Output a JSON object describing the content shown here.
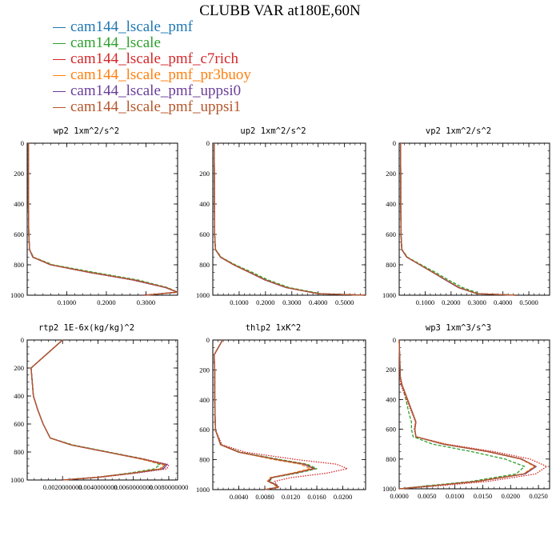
{
  "title": "CLUBB VAR at180E,60N",
  "legend": [
    {
      "name": "cam144_lscale_pmf",
      "color": "#1f77b4",
      "dash": "solid"
    },
    {
      "name": "cam144_lscale",
      "color": "#2ca02c",
      "dash": "dashed"
    },
    {
      "name": "cam144_lscale_pmf_c7rich",
      "color": "#d62728",
      "dash": "dotted"
    },
    {
      "name": "cam144_lscale_pmf_pr3buoy",
      "color": "#ff7f0e",
      "dash": "dashed"
    },
    {
      "name": "cam144_lscale_pmf_uppsi0",
      "color": "#6a3d9a",
      "dash": "solid"
    },
    {
      "name": "cam144_lscale_pmf_uppsi1",
      "color": "#b5562a",
      "dash": "solid"
    }
  ],
  "chart_data": [
    {
      "type": "line",
      "title": "wp2   1xm^2/s^2",
      "xlim": [
        0,
        0.38
      ],
      "ylim": [
        1000,
        0
      ],
      "xticks": [
        0.1,
        0.2,
        0.3
      ],
      "xtick_labels": [
        "0.1000",
        "0.2000",
        "0.3000"
      ],
      "yticks": [
        0,
        200,
        400,
        600,
        800,
        1000
      ],
      "ytick_labels": [
        "0",
        "200",
        "400",
        "600",
        "800",
        "1000"
      ],
      "y": [
        0,
        200,
        400,
        600,
        700,
        750,
        800,
        850,
        900,
        950,
        980,
        1000
      ],
      "series": [
        {
          "name": "cam144_lscale_pmf",
          "values": [
            0.003,
            0.003,
            0.003,
            0.004,
            0.006,
            0.015,
            0.06,
            0.16,
            0.27,
            0.35,
            0.38,
            0.3
          ]
        },
        {
          "name": "cam144_lscale",
          "values": [
            0.003,
            0.003,
            0.003,
            0.004,
            0.006,
            0.016,
            0.065,
            0.17,
            0.28,
            0.355,
            0.38,
            0.3
          ]
        },
        {
          "name": "cam144_lscale_pmf_c7rich",
          "values": [
            0.003,
            0.003,
            0.003,
            0.004,
            0.006,
            0.015,
            0.058,
            0.155,
            0.265,
            0.35,
            0.378,
            0.29
          ]
        },
        {
          "name": "cam144_lscale_pmf_pr3buoy",
          "values": [
            0.003,
            0.003,
            0.003,
            0.004,
            0.006,
            0.015,
            0.06,
            0.158,
            0.27,
            0.35,
            0.38,
            0.3
          ]
        },
        {
          "name": "cam144_lscale_pmf_uppsi0",
          "values": [
            0.003,
            0.003,
            0.003,
            0.004,
            0.006,
            0.014,
            0.059,
            0.157,
            0.268,
            0.35,
            0.379,
            0.3
          ]
        },
        {
          "name": "cam144_lscale_pmf_uppsi1",
          "values": [
            0.003,
            0.003,
            0.003,
            0.004,
            0.006,
            0.015,
            0.06,
            0.16,
            0.272,
            0.352,
            0.38,
            0.3
          ]
        }
      ]
    },
    {
      "type": "line",
      "title": "up2   1xm^2/s^2",
      "xlim": [
        0,
        0.58
      ],
      "ylim": [
        1000,
        0
      ],
      "xticks": [
        0.1,
        0.2,
        0.3,
        0.4,
        0.5
      ],
      "xtick_labels": [
        "0.1000",
        "0.2000",
        "0.3000",
        "0.4000",
        "0.5000"
      ],
      "yticks": [
        0,
        200,
        400,
        600,
        800,
        1000
      ],
      "ytick_labels": [
        "0",
        "200",
        "400",
        "600",
        "800",
        "1000"
      ],
      "y": [
        0,
        200,
        400,
        600,
        700,
        750,
        800,
        850,
        900,
        950,
        990,
        1000
      ],
      "series": [
        {
          "name": "cam144_lscale_pmf",
          "values": [
            0.005,
            0.006,
            0.006,
            0.007,
            0.01,
            0.03,
            0.08,
            0.14,
            0.2,
            0.28,
            0.4,
            0.58
          ]
        },
        {
          "name": "cam144_lscale",
          "values": [
            0.005,
            0.006,
            0.006,
            0.007,
            0.011,
            0.032,
            0.085,
            0.15,
            0.21,
            0.29,
            0.41,
            0.58
          ]
        },
        {
          "name": "cam144_lscale_pmf_c7rich",
          "values": [
            0.005,
            0.006,
            0.006,
            0.007,
            0.01,
            0.03,
            0.08,
            0.14,
            0.2,
            0.28,
            0.4,
            0.58
          ]
        },
        {
          "name": "cam144_lscale_pmf_pr3buoy",
          "values": [
            0.005,
            0.006,
            0.006,
            0.007,
            0.01,
            0.03,
            0.08,
            0.14,
            0.2,
            0.28,
            0.4,
            0.58
          ]
        },
        {
          "name": "cam144_lscale_pmf_uppsi0",
          "values": [
            0.005,
            0.006,
            0.006,
            0.007,
            0.01,
            0.029,
            0.079,
            0.139,
            0.198,
            0.278,
            0.4,
            0.58
          ]
        },
        {
          "name": "cam144_lscale_pmf_uppsi1",
          "values": [
            0.005,
            0.006,
            0.006,
            0.007,
            0.01,
            0.03,
            0.08,
            0.141,
            0.201,
            0.281,
            0.4,
            0.58
          ]
        }
      ]
    },
    {
      "type": "line",
      "title": "vp2   1xm^2/s^2",
      "xlim": [
        0,
        0.58
      ],
      "ylim": [
        1000,
        0
      ],
      "xticks": [
        0.1,
        0.2,
        0.3,
        0.4,
        0.5
      ],
      "xtick_labels": [
        "0.1000",
        "0.2000",
        "0.3000",
        "0.4000",
        "0.5000"
      ],
      "yticks": [
        0,
        200,
        400,
        600,
        800,
        1000
      ],
      "ytick_labels": [
        "0",
        "200",
        "400",
        "600",
        "800",
        "1000"
      ],
      "y": [
        0,
        200,
        400,
        600,
        700,
        750,
        800,
        850,
        900,
        950,
        990,
        1000
      ],
      "series": [
        {
          "name": "cam144_lscale_pmf",
          "values": [
            0.005,
            0.006,
            0.006,
            0.007,
            0.01,
            0.03,
            0.08,
            0.13,
            0.18,
            0.23,
            0.3,
            0.45
          ]
        },
        {
          "name": "cam144_lscale",
          "values": [
            0.005,
            0.006,
            0.006,
            0.007,
            0.011,
            0.032,
            0.085,
            0.14,
            0.19,
            0.245,
            0.31,
            0.45
          ]
        },
        {
          "name": "cam144_lscale_pmf_c7rich",
          "values": [
            0.005,
            0.006,
            0.006,
            0.007,
            0.01,
            0.03,
            0.08,
            0.13,
            0.18,
            0.23,
            0.3,
            0.45
          ]
        },
        {
          "name": "cam144_lscale_pmf_pr3buoy",
          "values": [
            0.005,
            0.006,
            0.006,
            0.007,
            0.01,
            0.03,
            0.08,
            0.13,
            0.18,
            0.23,
            0.3,
            0.45
          ]
        },
        {
          "name": "cam144_lscale_pmf_uppsi0",
          "values": [
            0.005,
            0.006,
            0.006,
            0.007,
            0.01,
            0.029,
            0.079,
            0.129,
            0.178,
            0.228,
            0.3,
            0.45
          ]
        },
        {
          "name": "cam144_lscale_pmf_uppsi1",
          "values": [
            0.005,
            0.006,
            0.006,
            0.007,
            0.01,
            0.03,
            0.08,
            0.131,
            0.181,
            0.232,
            0.3,
            0.45
          ]
        }
      ]
    },
    {
      "type": "line",
      "title": "rtp2   1E-6x(kg/kg)^2",
      "xlim": [
        0,
        8.5e-07
      ],
      "ylim": [
        1000,
        0
      ],
      "xticks": [
        2e-07,
        4e-07,
        6e-07,
        8e-07
      ],
      "xtick_labels": [
        "0.0020000000",
        "0.0040000000",
        "0.0060000000",
        "0.0080000000"
      ],
      "yticks": [
        0,
        200,
        400,
        600,
        800,
        1000
      ],
      "ytick_labels": [
        "0",
        "200",
        "400",
        "600",
        "800",
        "1000"
      ],
      "y": [
        0,
        200,
        400,
        500,
        600,
        700,
        750,
        800,
        850,
        890,
        920,
        950,
        980,
        1000
      ],
      "series": [
        {
          "name": "cam144_lscale_pmf",
          "values": [
            2e-07,
            2.2e-08,
            3.5e-08,
            6e-08,
            9e-08,
            1.3e-07,
            2.5e-07,
            4.5e-07,
            6.5e-07,
            7.8e-07,
            7.6e-07,
            6e-07,
            4e-07,
            2e-07
          ]
        },
        {
          "name": "cam144_lscale",
          "values": [
            2e-07,
            2.2e-08,
            3.5e-08,
            6e-08,
            9e-08,
            1.3e-07,
            2.6e-07,
            4.6e-07,
            6.6e-07,
            7.5e-07,
            7.2e-07,
            5.8e-07,
            4e-07,
            2e-07
          ]
        },
        {
          "name": "cam144_lscale_pmf_c7rich",
          "values": [
            2e-07,
            2.2e-08,
            3.5e-08,
            6e-08,
            9e-08,
            1.3e-07,
            2.5e-07,
            4.5e-07,
            6.6e-07,
            8e-07,
            7.9e-07,
            6.2e-07,
            4.2e-07,
            2e-07
          ]
        },
        {
          "name": "cam144_lscale_pmf_pr3buoy",
          "values": [
            2e-07,
            2.2e-08,
            3.5e-08,
            6e-08,
            9e-08,
            1.3e-07,
            2.5e-07,
            4.5e-07,
            6.4e-07,
            7.7e-07,
            7.5e-07,
            6e-07,
            4e-07,
            2e-07
          ]
        },
        {
          "name": "cam144_lscale_pmf_uppsi0",
          "values": [
            2e-07,
            2.2e-08,
            3.5e-08,
            6e-08,
            9e-08,
            1.3e-07,
            2.5e-07,
            4.5e-07,
            6.5e-07,
            7.9e-07,
            7.7e-07,
            6.1e-07,
            4e-07,
            2e-07
          ]
        },
        {
          "name": "cam144_lscale_pmf_uppsi1",
          "values": [
            2e-07,
            2.2e-08,
            3.5e-08,
            6e-08,
            9e-08,
            1.3e-07,
            2.5e-07,
            4.5e-07,
            6.5e-07,
            7.8e-07,
            7.6e-07,
            6e-07,
            4e-07,
            2e-07
          ]
        }
      ]
    },
    {
      "type": "line",
      "title": "thlp2   1xK^2",
      "xlim": [
        0,
        0.0235
      ],
      "ylim": [
        1000,
        0
      ],
      "xticks": [
        0.004,
        0.008,
        0.012,
        0.016,
        0.02
      ],
      "xtick_labels": [
        "0.0040",
        "0.0080",
        "0.0120",
        "0.0160",
        "0.0200"
      ],
      "yticks": [
        0,
        200,
        400,
        600,
        800,
        1000
      ],
      "ytick_labels": [
        "0",
        "200",
        "400",
        "600",
        "800",
        "1000"
      ],
      "y": [
        0,
        100,
        200,
        400,
        600,
        700,
        750,
        800,
        830,
        860,
        890,
        920,
        945,
        965,
        985,
        1000
      ],
      "series": [
        {
          "name": "cam144_lscale_pmf",
          "values": [
            0.0015,
            0.0002,
            0.0003,
            0.0003,
            0.0004,
            0.0012,
            0.004,
            0.01,
            0.014,
            0.0155,
            0.0125,
            0.009,
            0.0085,
            0.0095,
            0.01,
            0.008
          ]
        },
        {
          "name": "cam144_lscale",
          "values": [
            0.0015,
            0.0002,
            0.0003,
            0.0003,
            0.0004,
            0.0013,
            0.0042,
            0.0105,
            0.0145,
            0.016,
            0.013,
            0.0092,
            0.0087,
            0.0097,
            0.0101,
            0.008
          ]
        },
        {
          "name": "cam144_lscale_pmf_c7rich",
          "values": [
            0.0015,
            0.0002,
            0.0003,
            0.0003,
            0.0004,
            0.0014,
            0.005,
            0.013,
            0.019,
            0.0207,
            0.0175,
            0.012,
            0.0095,
            0.0098,
            0.0102,
            0.008
          ]
        },
        {
          "name": "cam144_lscale_pmf_pr3buoy",
          "values": [
            0.0015,
            0.0002,
            0.0003,
            0.0003,
            0.0004,
            0.0012,
            0.004,
            0.0095,
            0.0135,
            0.015,
            0.0122,
            0.0088,
            0.0084,
            0.0094,
            0.0099,
            0.008
          ]
        },
        {
          "name": "cam144_lscale_pmf_uppsi0",
          "values": [
            0.0015,
            0.0002,
            0.0003,
            0.0003,
            0.0004,
            0.0012,
            0.004,
            0.01,
            0.014,
            0.0157,
            0.0126,
            0.0091,
            0.0086,
            0.0096,
            0.01,
            0.008
          ]
        },
        {
          "name": "cam144_lscale_pmf_uppsi1",
          "values": [
            0.0015,
            0.0002,
            0.0003,
            0.0003,
            0.0004,
            0.0012,
            0.004,
            0.01,
            0.0142,
            0.0156,
            0.0125,
            0.009,
            0.0085,
            0.0095,
            0.01,
            0.008
          ]
        }
      ]
    },
    {
      "type": "line",
      "title": "wp3   1xm^3/s^3",
      "xlim": [
        0,
        0.027
      ],
      "ylim": [
        1000,
        0
      ],
      "xticks": [
        0,
        0.005,
        0.01,
        0.015,
        0.02,
        0.025
      ],
      "xtick_labels": [
        "0.0000",
        "0.0050",
        "0.0100",
        "0.0150",
        "0.0200",
        "0.0250"
      ],
      "yticks": [
        0,
        200,
        400,
        600,
        800,
        1000
      ],
      "ytick_labels": [
        "0",
        "200",
        "400",
        "600",
        "800",
        "1000"
      ],
      "y": [
        0,
        250,
        300,
        400,
        500,
        550,
        600,
        650,
        700,
        750,
        800,
        850,
        900,
        950,
        980,
        1000
      ],
      "series": [
        {
          "name": "cam144_lscale_pmf",
          "values": [
            0,
            0.0002,
            0.0005,
            0.0015,
            0.0025,
            0.003,
            0.0028,
            0.003,
            0.008,
            0.016,
            0.022,
            0.0245,
            0.0225,
            0.014,
            0.006,
            0
          ]
        },
        {
          "name": "cam144_lscale",
          "values": [
            0,
            0.0002,
            0.0005,
            0.0012,
            0.0018,
            0.0022,
            0.0022,
            0.0025,
            0.006,
            0.013,
            0.019,
            0.0225,
            0.021,
            0.013,
            0.005,
            0
          ]
        },
        {
          "name": "cam144_lscale_pmf_c7rich",
          "values": [
            0,
            0.0001,
            0.0003,
            0.0013,
            0.0024,
            0.0029,
            0.0027,
            0.003,
            0.0085,
            0.017,
            0.0235,
            0.0265,
            0.0245,
            0.016,
            0.007,
            0
          ]
        },
        {
          "name": "cam144_lscale_pmf_pr3buoy",
          "values": [
            0,
            0.0002,
            0.0005,
            0.0015,
            0.0025,
            0.003,
            0.0028,
            0.003,
            0.008,
            0.0158,
            0.0218,
            0.0243,
            0.0223,
            0.0138,
            0.006,
            0
          ]
        },
        {
          "name": "cam144_lscale_pmf_uppsi0",
          "values": [
            0,
            0.0002,
            0.0005,
            0.0015,
            0.0025,
            0.003,
            0.0028,
            0.003,
            0.0079,
            0.0159,
            0.0219,
            0.0246,
            0.0226,
            0.0141,
            0.006,
            0
          ]
        },
        {
          "name": "cam144_lscale_pmf_uppsi1",
          "values": [
            0,
            0.0002,
            0.0005,
            0.0015,
            0.0025,
            0.003,
            0.0028,
            0.003,
            0.008,
            0.016,
            0.022,
            0.0245,
            0.0224,
            0.014,
            0.006,
            0
          ]
        }
      ]
    }
  ]
}
